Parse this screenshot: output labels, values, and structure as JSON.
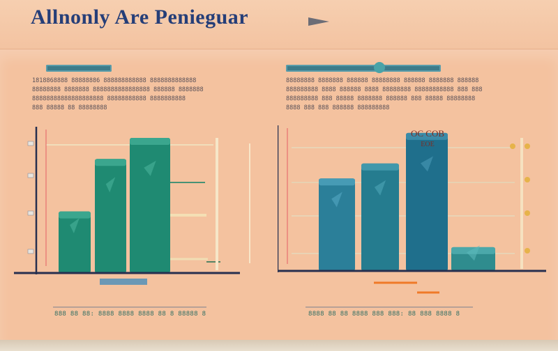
{
  "page": {
    "title": "Allnonly Are Penieguar"
  },
  "panels": [
    {
      "id": "left",
      "description_lines": [
        "1818868888 88888886 888888888888 8888888888888",
        "88888888 8888888 8888888888888888 888888 8888888",
        "88888888888888888888 88888888888 8888888888",
        "888 88888 88 88888888"
      ],
      "footer_text": "888 88 88: 8888 8888 8888 88 8 88888 8"
    },
    {
      "id": "right",
      "description_lines": [
        "88888888 8888888 888888 88888888 888888 8888888 888888",
        "888888888 8888 888888 8888 88888888 88888888888 888 888",
        "888888888 888 88888 8888888 888888 888 88888 88888888",
        "8888 888 888 888888 888888888"
      ],
      "footer_text": "8888 88 88 8888 888 888: 88 888 8888 8"
    }
  ],
  "chart_data": [
    {
      "type": "bar",
      "categories": [
        "",
        "",
        ""
      ],
      "values": [
        88,
        163,
        193
      ],
      "ylim": [
        0,
        205
      ],
      "bar_color": "#1f8a72",
      "axis_color": "#262f4f",
      "grid": false,
      "title": "",
      "xlabel": "",
      "ylabel": ""
    },
    {
      "type": "bar",
      "categories": [
        "",
        "",
        "",
        ""
      ],
      "values": [
        136,
        158,
        203,
        35
      ],
      "ylim": [
        0,
        210
      ],
      "bar_color": "#2a7f92",
      "axis_color": "#262f4f",
      "grid": true,
      "annotations": [
        {
          "text": "OC COB"
        },
        {
          "text": "EOE"
        }
      ],
      "title": "",
      "xlabel": "",
      "ylabel": ""
    }
  ]
}
